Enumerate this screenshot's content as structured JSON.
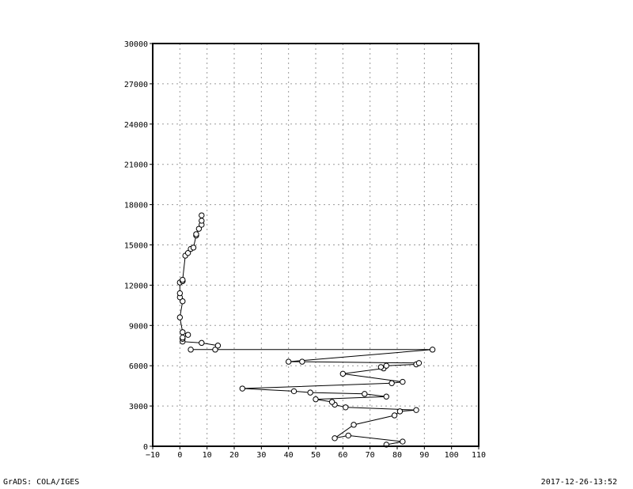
{
  "footer": {
    "left": "GrADS: COLA/IGES",
    "right": "2017-12-26-13:52"
  },
  "chart_data": {
    "type": "scatter",
    "title": "",
    "xlabel": "",
    "ylabel": "",
    "xlim": [
      -10,
      110
    ],
    "ylim": [
      0,
      30000
    ],
    "xticks": [
      -10,
      0,
      10,
      20,
      30,
      40,
      50,
      60,
      70,
      80,
      90,
      100,
      110
    ],
    "yticks": [
      0,
      3000,
      6000,
      9000,
      12000,
      15000,
      18000,
      21000,
      24000,
      27000,
      30000
    ],
    "grid": true,
    "markers": "open circles",
    "connected": true,
    "series": [
      {
        "x": [
          76,
          82,
          62,
          57,
          64,
          79,
          81,
          87,
          61,
          57,
          56,
          50,
          76,
          68,
          48,
          42,
          23,
          78,
          82,
          60,
          75,
          74,
          76,
          87,
          88,
          45,
          40,
          93,
          4,
          13,
          14,
          8,
          1,
          1,
          1,
          3,
          1,
          0,
          1,
          0,
          0,
          0,
          1,
          1,
          1,
          2,
          3,
          4,
          5,
          6,
          6,
          7,
          8,
          8,
          8
        ],
        "y": [
          120,
          350,
          800,
          600,
          1600,
          2300,
          2600,
          2700,
          2900,
          3100,
          3300,
          3500,
          3700,
          3900,
          4000,
          4100,
          4300,
          4700,
          4800,
          5400,
          5800,
          5900,
          6000,
          6100,
          6200,
          6300,
          6300,
          7200,
          7200,
          7200,
          7500,
          7700,
          7800,
          8000,
          8100,
          8300,
          8500,
          9600,
          10800,
          11100,
          11400,
          12200,
          12300,
          12300,
          12400,
          14200,
          14400,
          14700,
          14800,
          15700,
          15800,
          16200,
          16500,
          16800,
          17200
        ]
      }
    ]
  }
}
